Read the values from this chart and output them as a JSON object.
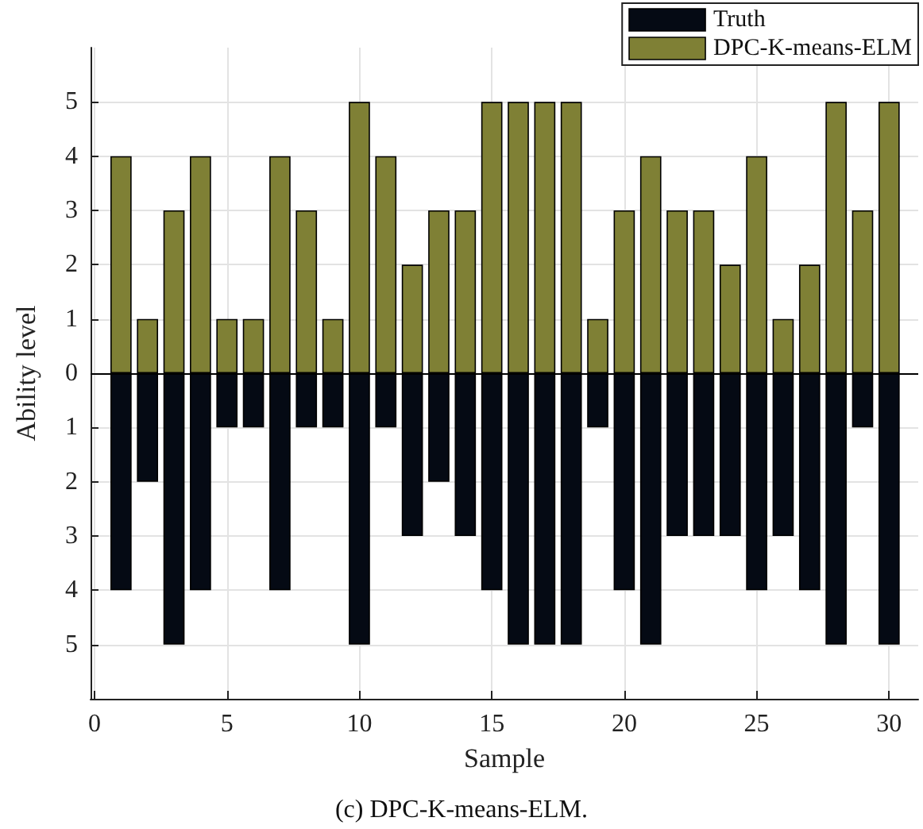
{
  "chart_data": {
    "type": "bar",
    "xlabel": "Sample",
    "ylabel": "Ability level",
    "annotations": [
      "(c) DPC-K-means-ELM."
    ],
    "x": [
      1,
      2,
      3,
      4,
      5,
      6,
      7,
      8,
      9,
      10,
      11,
      12,
      13,
      14,
      15,
      16,
      17,
      18,
      19,
      20,
      21,
      22,
      23,
      24,
      25,
      26,
      27,
      28,
      29,
      30
    ],
    "series": [
      {
        "name": "Truth",
        "color": "#050a14",
        "values": [
          -4,
          -2,
          -5,
          -4,
          -1,
          -1,
          -4,
          -1,
          -1,
          -5,
          -1,
          -3,
          -2,
          -3,
          -4,
          -5,
          -5,
          -5,
          -1,
          -4,
          -5,
          -3,
          -3,
          -3,
          -4,
          -3,
          -4,
          -5,
          -1,
          -5
        ]
      },
      {
        "name": "DPC-K-means-ELM",
        "color": "#7f8035",
        "values": [
          4,
          1,
          3,
          4,
          1,
          1,
          4,
          3,
          1,
          5,
          4,
          2,
          3,
          3,
          5,
          5,
          5,
          5,
          1,
          3,
          4,
          3,
          3,
          2,
          4,
          1,
          2,
          5,
          3,
          5
        ]
      }
    ],
    "xlim": [
      -0.15,
      31.1
    ],
    "xticks": [
      0,
      5,
      10,
      15,
      20,
      25,
      30
    ],
    "ylim": [
      -6,
      6
    ],
    "yticks": [
      {
        "value": -5,
        "label": "5"
      },
      {
        "value": -4,
        "label": "4"
      },
      {
        "value": -3,
        "label": "3"
      },
      {
        "value": -2,
        "label": "2"
      },
      {
        "value": -1,
        "label": "1"
      },
      0,
      1,
      2,
      3,
      4,
      5
    ],
    "ref_lines": [
      {
        "axis": "y",
        "value": 0,
        "color": "#000000"
      }
    ],
    "grid": true,
    "legend": "top right",
    "stacked": true
  }
}
